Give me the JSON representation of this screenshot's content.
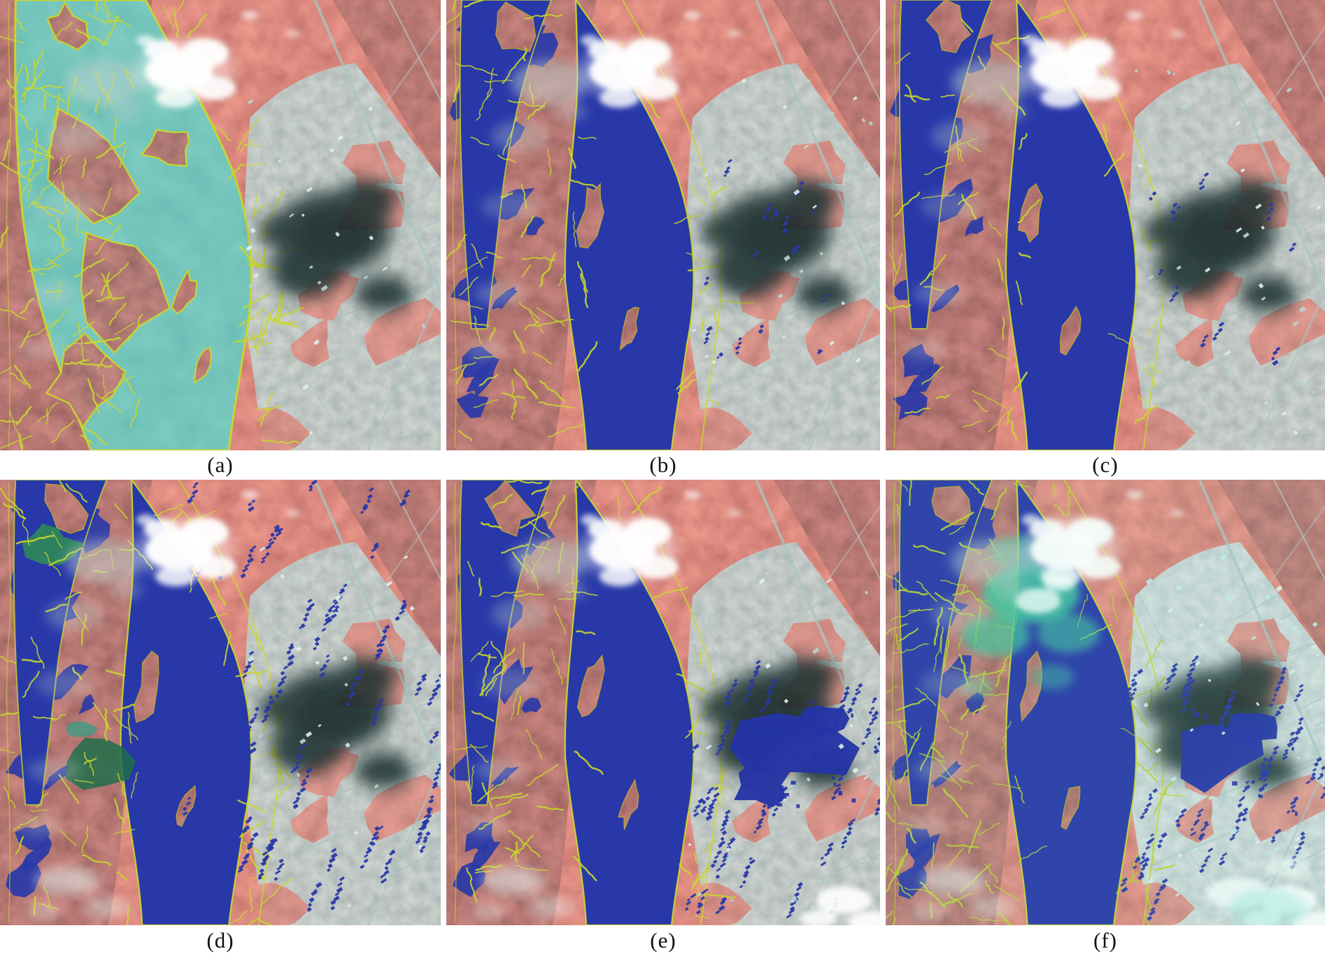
{
  "figure": {
    "type": "satellite-image-comparison-figure",
    "description": "Six false-color remote sensing panels of the same river scene comparing water extraction results; water is teal-green in panel a and royal blue in panels b-f, with yellow classification boundaries, white clouds, a dark cloud shadow and a gray urban district",
    "grid": {
      "rows": 2,
      "cols": 3
    },
    "panels": [
      {
        "id": "a",
        "label": "(a)",
        "water_color": "#2e9183",
        "description": "river and wetland extracted as teal-green with dense yellow boundary outlines"
      },
      {
        "id": "b",
        "label": "(b)",
        "water_color": "#2838a8",
        "description": "river extracted as royal blue with yellow bank speckles"
      },
      {
        "id": "c",
        "label": "(c)",
        "water_color": "#2838a8",
        "description": "royal blue river, cleaner extraction with fewer speckles"
      },
      {
        "id": "d",
        "label": "(d)",
        "water_color": "#2838a8",
        "description": "royal blue river with green wetland patches and many blue building false positives across the urban area"
      },
      {
        "id": "e",
        "label": "(e)",
        "water_color": "#2838a8",
        "description": "royal blue river with a large blue blob detected inside the cloud shadow and blue speckles in the lower urban area"
      },
      {
        "id": "f",
        "label": "(f)",
        "water_color": "#2838a8",
        "description": "brighter cyan-cast scene, aqua cloud haze over the upper river, heavy yellow-green outlines and blue blob in the cloud shadow"
      }
    ],
    "palette": {
      "vegetation_red": "#d0604f",
      "vegetation_dark_red": "#96382e",
      "water_blue": "#2838a8",
      "water_teal": "#2e9183",
      "boundary_yellow": "#c9d62c",
      "boundary_olive": "#b9a23a",
      "urban_gray": "#84a09c",
      "street_cyan": "#a3c4c0",
      "cloud_white": "#ffffff",
      "cloud_gray": "#c2d2d0",
      "cloud_shadow": "#1d3032",
      "aqua_haze": "#3fc79d",
      "green_patch": "#2e8a58",
      "page_background": "#ffffff",
      "caption_color": "#111111"
    }
  }
}
